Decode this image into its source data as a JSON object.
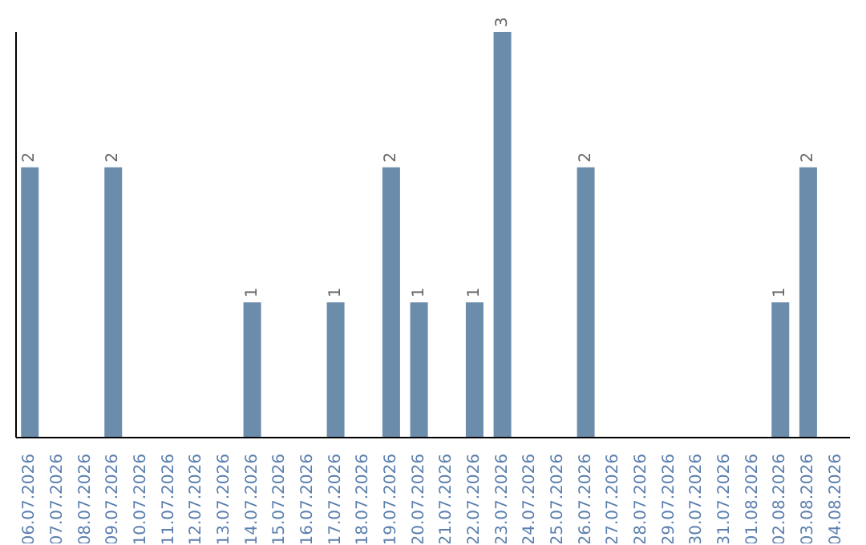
{
  "chart_data": {
    "type": "bar",
    "categories": [
      "06.07.2026",
      "07.07.2026",
      "08.07.2026",
      "09.07.2026",
      "10.07.2026",
      "11.07.2026",
      "12.07.2026",
      "13.07.2026",
      "14.07.2026",
      "15.07.2026",
      "16.07.2026",
      "17.07.2026",
      "18.07.2026",
      "19.07.2026",
      "20.07.2026",
      "21.07.2026",
      "22.07.2026",
      "23.07.2026",
      "24.07.2026",
      "25.07.2026",
      "26.07.2026",
      "27.07.2026",
      "28.07.2026",
      "29.07.2026",
      "30.07.2026",
      "31.07.2026",
      "01.08.2026",
      "02.08.2026",
      "03.08.2026",
      "04.08.2026"
    ],
    "values": [
      2,
      0,
      0,
      2,
      0,
      0,
      0,
      0,
      1,
      0,
      0,
      1,
      0,
      2,
      1,
      0,
      1,
      3,
      0,
      0,
      2,
      0,
      0,
      0,
      0,
      0,
      0,
      1,
      2,
      0
    ],
    "value_labels": [
      "2",
      null,
      null,
      "2",
      null,
      null,
      null,
      null,
      "1",
      null,
      null,
      "1",
      null,
      "2",
      "1",
      null,
      "1",
      "3",
      null,
      null,
      "2",
      null,
      null,
      null,
      null,
      null,
      null,
      "1",
      "2",
      null
    ],
    "color": "#6b8cab"
  }
}
